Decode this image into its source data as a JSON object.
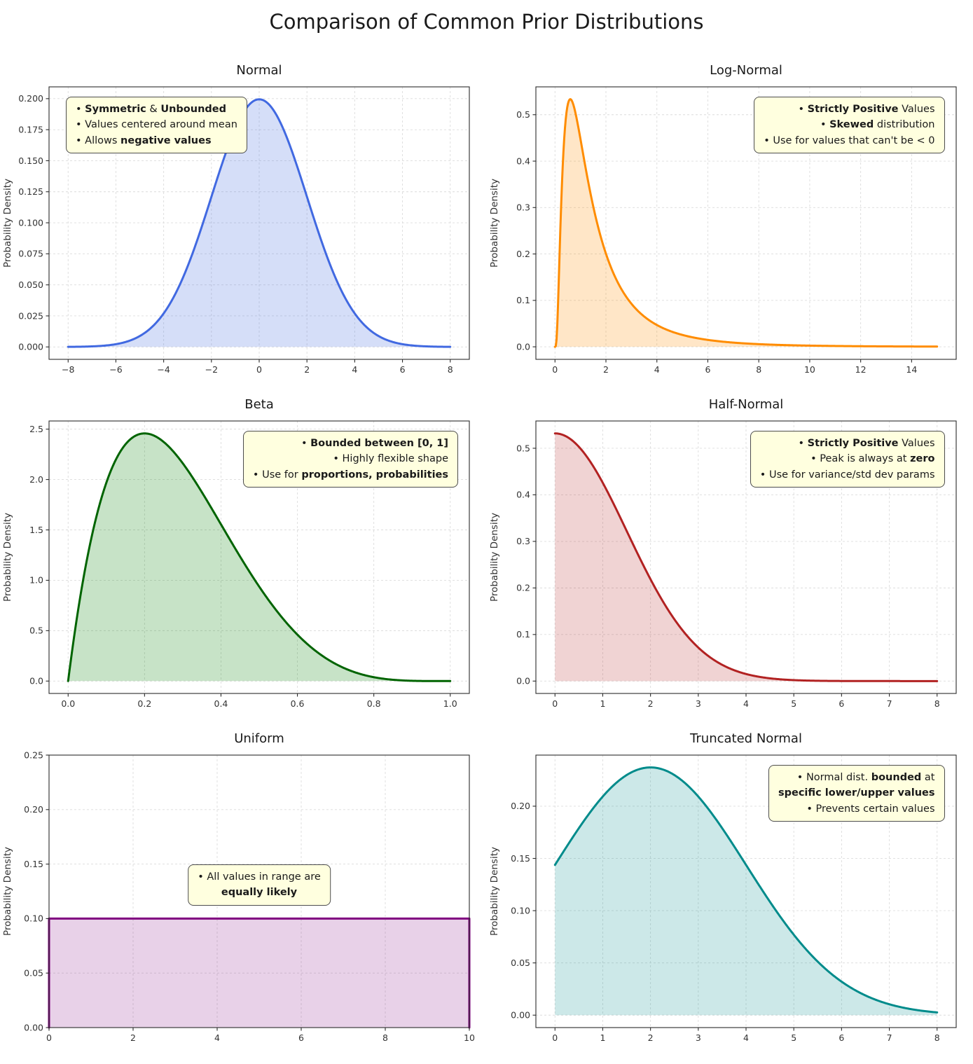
{
  "title": "Comparison of Common Prior Distributions",
  "style": {
    "background": "#ffffff",
    "annotation_bg": "#ffffdf",
    "annotation_border": "#4d4d4d",
    "grid_color": "#dcdcdc",
    "spine_color": "#2b2b2b",
    "tick_color": "#333333",
    "title_color": "#1a1a1a"
  },
  "chart_data": [
    {
      "type": "area",
      "title": "Normal",
      "xlabel": "",
      "ylabel": "Probability Density",
      "line_color": "#4169e1",
      "fill_color": "rgba(65,105,225,0.22)",
      "dist": {
        "name": "normal",
        "mu": 0,
        "sigma": 2
      },
      "x_range": [
        -8,
        8
      ],
      "xlim": [
        -8.8,
        8.8
      ],
      "ylim": [
        -0.01,
        0.2095
      ],
      "xticks": [
        -8,
        -6,
        -4,
        -2,
        0,
        2,
        4,
        6,
        8
      ],
      "yticks": [
        0,
        0.025,
        0.05,
        0.075,
        0.1,
        0.125,
        0.15,
        0.175,
        0.2
      ],
      "xtick_decimals": 0,
      "ytick_decimals": 3,
      "grid": true,
      "peak": {
        "x": 0,
        "y": 0.1995
      },
      "annotation": {
        "anchor": "top-left",
        "align": "left",
        "lines": [
          [
            {
              "t": "• ",
              "b": false
            },
            {
              "t": "Symmetric",
              "b": true
            },
            {
              "t": " & ",
              "b": false
            },
            {
              "t": "Unbounded",
              "b": true
            }
          ],
          [
            {
              "t": "• Values centered around mean",
              "b": false
            }
          ],
          [
            {
              "t": "• Allows ",
              "b": false
            },
            {
              "t": "negative values",
              "b": true
            }
          ]
        ]
      }
    },
    {
      "type": "area",
      "title": "Log-Normal",
      "xlabel": "",
      "ylabel": "Probability Density",
      "line_color": "#ff8c00",
      "fill_color": "rgba(255,140,0,0.22)",
      "dist": {
        "name": "lognormal",
        "mu": 0.23,
        "sigma": 0.86
      },
      "x_range": [
        0.001,
        15
      ],
      "xlim": [
        -0.75,
        15.75
      ],
      "ylim": [
        -0.027,
        0.56
      ],
      "xticks": [
        0,
        2,
        4,
        6,
        8,
        10,
        12,
        14
      ],
      "yticks": [
        0,
        0.1,
        0.2,
        0.3,
        0.4,
        0.5
      ],
      "xtick_decimals": 0,
      "ytick_decimals": 1,
      "grid": true,
      "peak": {
        "x": 0.6,
        "y": 0.533
      },
      "annotation": {
        "anchor": "top-right",
        "align": "right",
        "lines": [
          [
            {
              "t": "• ",
              "b": false
            },
            {
              "t": "Strictly Positive",
              "b": true
            },
            {
              "t": " Values",
              "b": false
            }
          ],
          [
            {
              "t": "• ",
              "b": false
            },
            {
              "t": "Skewed",
              "b": true
            },
            {
              "t": " distribution",
              "b": false
            }
          ],
          [
            {
              "t": "• Use for values that can't be < 0",
              "b": false
            }
          ]
        ]
      }
    },
    {
      "type": "area",
      "title": "Beta",
      "xlabel": "",
      "ylabel": "Probability Density",
      "line_color": "#006400",
      "fill_color": "rgba(0,128,0,0.22)",
      "dist": {
        "name": "beta",
        "a": 2,
        "b": 5,
        "norm": 30
      },
      "x_range": [
        0,
        1
      ],
      "xlim": [
        -0.05,
        1.05
      ],
      "ylim": [
        -0.123,
        2.581
      ],
      "xticks": [
        0,
        0.2,
        0.4,
        0.6,
        0.8,
        1
      ],
      "yticks": [
        0,
        0.5,
        1,
        1.5,
        2,
        2.5
      ],
      "xtick_decimals": 1,
      "ytick_decimals": 1,
      "grid": true,
      "peak": {
        "x": 0.2,
        "y": 2.458
      },
      "annotation": {
        "anchor": "top-right",
        "align": "right",
        "lines": [
          [
            {
              "t": "• ",
              "b": false
            },
            {
              "t": "Bounded between [0, 1]",
              "b": true
            }
          ],
          [
            {
              "t": "• Highly flexible shape",
              "b": false
            }
          ],
          [
            {
              "t": "• Use for ",
              "b": false
            },
            {
              "t": "proportions, probabilities",
              "b": true
            }
          ]
        ]
      }
    },
    {
      "type": "area",
      "title": "Half-Normal",
      "xlabel": "",
      "ylabel": "Probability Density",
      "line_color": "#b22222",
      "fill_color": "rgba(178,34,34,0.20)",
      "dist": {
        "name": "halfnormal",
        "sigma": 1.5
      },
      "x_range": [
        0,
        8
      ],
      "xlim": [
        -0.4,
        8.4
      ],
      "ylim": [
        -0.0266,
        0.5586
      ],
      "xticks": [
        0,
        1,
        2,
        3,
        4,
        5,
        6,
        7,
        8
      ],
      "yticks": [
        0,
        0.1,
        0.2,
        0.3,
        0.4,
        0.5
      ],
      "xtick_decimals": 0,
      "ytick_decimals": 1,
      "grid": true,
      "peak": {
        "x": 0,
        "y": 0.532
      },
      "annotation": {
        "anchor": "top-right",
        "align": "right",
        "lines": [
          [
            {
              "t": "• ",
              "b": false
            },
            {
              "t": "Strictly Positive",
              "b": true
            },
            {
              "t": " Values",
              "b": false
            }
          ],
          [
            {
              "t": "• Peak is always at ",
              "b": false
            },
            {
              "t": "zero",
              "b": true
            }
          ],
          [
            {
              "t": "• Use for variance/std dev params",
              "b": false
            }
          ]
        ]
      }
    },
    {
      "type": "area",
      "title": "Uniform",
      "xlabel": "",
      "ylabel": "Probability Density",
      "line_color": "#800080",
      "fill_color": "rgba(128,0,128,0.18)",
      "dist": {
        "name": "uniform",
        "a": 0,
        "b": 10,
        "density": 0.1
      },
      "x_range": [
        0,
        10
      ],
      "xlim": [
        0,
        10
      ],
      "ylim": [
        0,
        0.25
      ],
      "xticks": [
        0,
        2,
        4,
        6,
        8,
        10
      ],
      "yticks": [
        0,
        0.05,
        0.1,
        0.15,
        0.2,
        0.25
      ],
      "xtick_decimals": 0,
      "ytick_decimals": 2,
      "grid": true,
      "peak": {
        "x": null,
        "y": 0.1
      },
      "annotation": {
        "anchor": "center",
        "align": "center",
        "lines": [
          [
            {
              "t": "• All values in range are",
              "b": false
            }
          ],
          [
            {
              "t": "equally likely",
              "b": true
            }
          ]
        ]
      }
    },
    {
      "type": "area",
      "title": "Truncated Normal",
      "xlabel": "",
      "ylabel": "Probability Density",
      "line_color": "#008b8b",
      "fill_color": "rgba(0,139,139,0.20)",
      "dist": {
        "name": "truncnormal",
        "mu": 2,
        "sigma": 2,
        "lower": 0,
        "scale": 1.1886
      },
      "x_range": [
        0,
        8
      ],
      "xlim": [
        -0.4,
        8.4
      ],
      "ylim": [
        -0.0119,
        0.2489
      ],
      "xticks": [
        0,
        1,
        2,
        3,
        4,
        5,
        6,
        7,
        8
      ],
      "yticks": [
        0,
        0.05,
        0.1,
        0.15,
        0.2
      ],
      "xtick_decimals": 0,
      "ytick_decimals": 2,
      "grid": true,
      "peak": {
        "x": 2,
        "y": 0.237
      },
      "annotation": {
        "anchor": "top-right",
        "align": "right",
        "lines": [
          [
            {
              "t": "• Normal dist. ",
              "b": false
            },
            {
              "t": "bounded",
              "b": true
            },
            {
              "t": " at",
              "b": false
            }
          ],
          [
            {
              "t": "specific lower/upper values",
              "b": true
            }
          ],
          [
            {
              "t": "• Prevents certain values",
              "b": false
            }
          ]
        ]
      }
    }
  ]
}
